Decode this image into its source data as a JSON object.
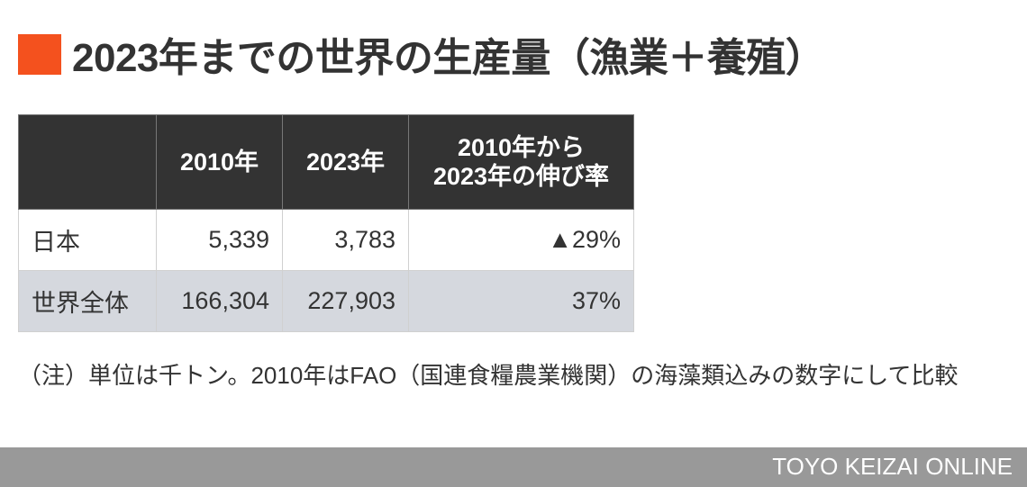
{
  "title": "2023年までの世界の生産量（漁業＋養殖）",
  "accent_color": "#f4511e",
  "chart_data": {
    "type": "table",
    "columns": [
      "",
      "2010年",
      "2023年",
      "2010年から\n2023年の伸び率"
    ],
    "columns_lines": [
      [
        "2010年から",
        "2023年の伸び率"
      ]
    ],
    "rows": [
      {
        "label": "日本",
        "v2010": "5,339",
        "v2023": "3,783",
        "growth": "▲29%"
      },
      {
        "label": "世界全体",
        "v2010": "166,304",
        "v2023": "227,903",
        "growth": "37%"
      }
    ]
  },
  "note": "（注）単位は千トン。2010年はFAO（国連食糧農業機関）の海藻類込みの数字にして比較",
  "footer": "TOYO KEIZAI ONLINE"
}
